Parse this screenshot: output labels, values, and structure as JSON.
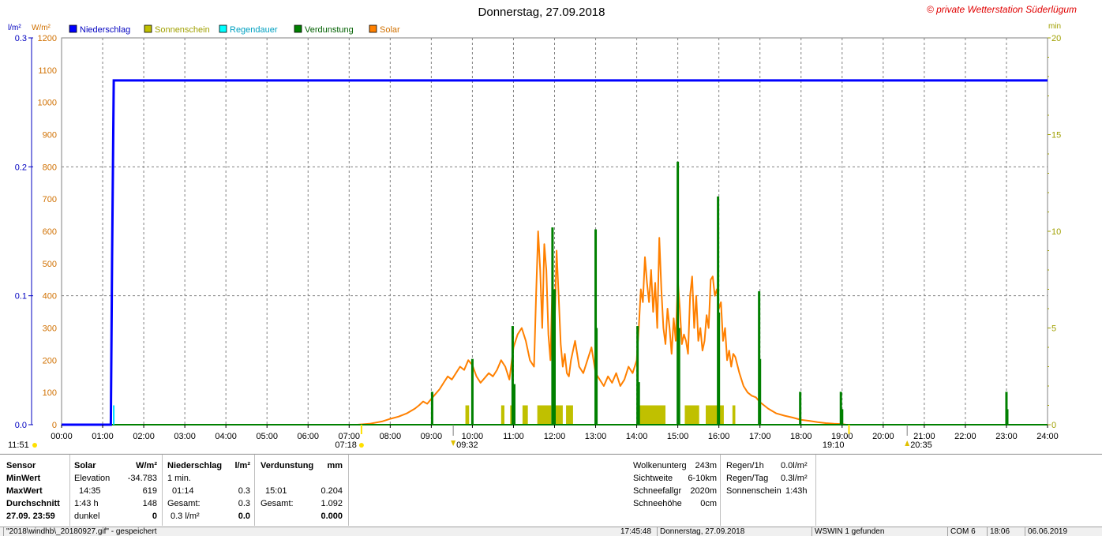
{
  "chart_data": {
    "type": "line",
    "title": "Donnerstag, 27.09.2018",
    "watermark": "© private Wetterstation Süderlügum",
    "left_units": [
      "l/m²",
      "W/m²"
    ],
    "right_unit": "min",
    "legend": [
      {
        "name": "Niederschlag",
        "color": "#0000ff"
      },
      {
        "name": "Sonnenschein",
        "color": "#c0c000"
      },
      {
        "name": "Regendauer",
        "color": "#00ffff"
      },
      {
        "name": "Verdunstung",
        "color": "#008000"
      },
      {
        "name": "Solar",
        "color": "#ff8000"
      }
    ],
    "x_ticks": [
      "00:00",
      "01:00",
      "02:00",
      "03:00",
      "04:00",
      "05:00",
      "06:00",
      "07:00",
      "08:00",
      "09:00",
      "10:00",
      "11:00",
      "12:00",
      "13:00",
      "14:00",
      "15:00",
      "16:00",
      "17:00",
      "18:00",
      "19:00",
      "20:00",
      "21:00",
      "22:00",
      "23:00",
      "24:00"
    ],
    "x_range_hours": [
      0,
      24
    ],
    "y_rain_ticks": [
      "0.0",
      "0.1",
      "0.2",
      "0.3"
    ],
    "y_rain_range": [
      0,
      0.3
    ],
    "y_solar_ticks": [
      "0",
      "100",
      "200",
      "300",
      "400",
      "500",
      "600",
      "700",
      "800",
      "900",
      "1000",
      "1100",
      "1200"
    ],
    "y_solar_range": [
      0,
      1200
    ],
    "y_right_ticks": [
      "0",
      "5",
      "10",
      "15",
      "20"
    ],
    "y_right_range": [
      0,
      20
    ],
    "sun_events": {
      "solar_noon": "11:51",
      "sunrise": "07:18",
      "sunset": "19:10",
      "moonrise": "09:32",
      "moonset": "20:35"
    },
    "grid": true,
    "niederschlag": {
      "x": [
        0,
        1.2,
        1.23,
        1.27,
        24
      ],
      "y": [
        0,
        0,
        0.13,
        0.267,
        0.267
      ]
    },
    "regendauer": {
      "x": [
        1.27
      ],
      "y": [
        1
      ]
    },
    "sonnenschein_bars": [
      {
        "x1": 9.83,
        "x2": 9.92,
        "v": 1
      },
      {
        "x1": 10.7,
        "x2": 10.78,
        "v": 1
      },
      {
        "x1": 10.92,
        "x2": 11.02,
        "v": 1
      },
      {
        "x1": 11.22,
        "x2": 11.35,
        "v": 1
      },
      {
        "x1": 11.58,
        "x2": 11.92,
        "v": 1
      },
      {
        "x1": 12.02,
        "x2": 12.2,
        "v": 1
      },
      {
        "x1": 12.28,
        "x2": 12.45,
        "v": 1
      },
      {
        "x1": 14.05,
        "x2": 14.7,
        "v": 1
      },
      {
        "x1": 15.17,
        "x2": 15.52,
        "v": 1
      },
      {
        "x1": 15.68,
        "x2": 16.12,
        "v": 1
      },
      {
        "x1": 16.33,
        "x2": 16.4,
        "v": 1
      }
    ],
    "verdunstung_bars": [
      {
        "x": 9.02,
        "v": 1.7
      },
      {
        "x": 10.0,
        "v": 3.4
      },
      {
        "x": 10.98,
        "v": 5.1
      },
      {
        "x": 11.02,
        "v": 2.1
      },
      {
        "x": 11.95,
        "v": 10.2
      },
      {
        "x": 12.0,
        "v": 7.0
      },
      {
        "x": 13.0,
        "v": 10.1
      },
      {
        "x": 13.02,
        "v": 5.0
      },
      {
        "x": 14.02,
        "v": 5.1
      },
      {
        "x": 14.05,
        "v": 2.2
      },
      {
        "x": 15.0,
        "v": 13.6
      },
      {
        "x": 15.03,
        "v": 5.0
      },
      {
        "x": 15.98,
        "v": 11.8
      },
      {
        "x": 16.0,
        "v": 5.8
      },
      {
        "x": 16.98,
        "v": 6.9
      },
      {
        "x": 17.0,
        "v": 3.4
      },
      {
        "x": 17.98,
        "v": 1.7
      },
      {
        "x": 18.97,
        "v": 1.7
      },
      {
        "x": 19.0,
        "v": 0.8
      },
      {
        "x": 23.0,
        "v": 1.7
      },
      {
        "x": 23.02,
        "v": 0.8
      }
    ],
    "solar": {
      "x": [
        0,
        7.2,
        7.5,
        7.8,
        8.0,
        8.2,
        8.4,
        8.6,
        8.7,
        8.8,
        8.9,
        9.0,
        9.1,
        9.2,
        9.3,
        9.4,
        9.5,
        9.6,
        9.7,
        9.8,
        9.9,
        10.0,
        10.1,
        10.2,
        10.3,
        10.4,
        10.5,
        10.6,
        10.7,
        10.8,
        10.9,
        11.0,
        11.1,
        11.2,
        11.3,
        11.4,
        11.5,
        11.55,
        11.6,
        11.65,
        11.7,
        11.75,
        11.8,
        11.85,
        11.9,
        11.95,
        12.0,
        12.05,
        12.1,
        12.15,
        12.2,
        12.25,
        12.3,
        12.35,
        12.4,
        12.5,
        12.6,
        12.7,
        12.8,
        12.9,
        13.0,
        13.1,
        13.2,
        13.3,
        13.4,
        13.5,
        13.6,
        13.7,
        13.8,
        13.9,
        14.0,
        14.05,
        14.1,
        14.15,
        14.2,
        14.25,
        14.3,
        14.35,
        14.4,
        14.45,
        14.5,
        14.55,
        14.6,
        14.65,
        14.7,
        14.75,
        14.8,
        14.85,
        14.9,
        14.95,
        15.0,
        15.05,
        15.1,
        15.15,
        15.2,
        15.25,
        15.3,
        15.35,
        15.4,
        15.45,
        15.5,
        15.55,
        15.6,
        15.65,
        15.7,
        15.75,
        15.8,
        15.85,
        15.9,
        15.95,
        16.0,
        16.05,
        16.1,
        16.15,
        16.2,
        16.25,
        16.3,
        16.35,
        16.4,
        16.5,
        16.6,
        16.7,
        16.8,
        16.9,
        17.0,
        17.2,
        17.4,
        17.6,
        17.8,
        18.0,
        18.2,
        18.4,
        18.6,
        18.8,
        19.0,
        19.1,
        24
      ],
      "y": [
        0,
        0,
        3,
        10,
        18,
        25,
        35,
        50,
        60,
        72,
        65,
        80,
        95,
        110,
        130,
        150,
        140,
        160,
        180,
        170,
        200,
        185,
        150,
        130,
        145,
        160,
        150,
        170,
        200,
        180,
        140,
        240,
        280,
        300,
        260,
        200,
        180,
        400,
        600,
        480,
        300,
        560,
        480,
        280,
        200,
        450,
        300,
        540,
        400,
        250,
        180,
        220,
        160,
        150,
        200,
        260,
        180,
        160,
        200,
        240,
        160,
        140,
        120,
        150,
        130,
        160,
        120,
        140,
        180,
        160,
        200,
        300,
        420,
        380,
        520,
        440,
        380,
        480,
        350,
        440,
        300,
        580,
        420,
        300,
        250,
        360,
        300,
        220,
        330,
        260,
        450,
        360,
        250,
        280,
        260,
        220,
        400,
        460,
        300,
        400,
        260,
        300,
        230,
        260,
        340,
        300,
        450,
        460,
        400,
        420,
        360,
        380,
        260,
        300,
        200,
        230,
        180,
        220,
        210,
        160,
        120,
        100,
        90,
        85,
        70,
        50,
        35,
        28,
        22,
        15,
        12,
        8,
        5,
        3,
        2,
        0,
        0
      ]
    }
  },
  "info": {
    "sensor": {
      "title": "Sensor",
      "rows": [
        "MinWert",
        "MaxWert",
        "Durchschnitt",
        "27.09.  23:59"
      ]
    },
    "solar": {
      "title": "Solar",
      "unit": "W/m²",
      "rows": [
        [
          "Elevation",
          "-34.783"
        ],
        [
          "14:35",
          "619"
        ],
        [
          "1:43 h",
          "148"
        ],
        [
          "dunkel",
          "0"
        ]
      ]
    },
    "niederschlag": {
      "title": "Niederschlag",
      "unit": "l/m²",
      "rows": [
        [
          "1 min.",
          ""
        ],
        [
          "01:14",
          "0.3"
        ],
        [
          "Gesamt:",
          "0.3"
        ],
        [
          "0.3 l/m²",
          "0.0"
        ]
      ]
    },
    "verdunstung": {
      "title": "Verdunstung",
      "unit": "mm",
      "rows": [
        [
          "",
          ""
        ],
        [
          "15:01",
          "0.204"
        ],
        [
          "Gesamt:",
          "1.092"
        ],
        [
          "",
          "0.000"
        ]
      ]
    },
    "wolken": {
      "rows": [
        [
          "Wolkenunterg",
          "243m"
        ],
        [
          "Sichtweite",
          "6-10km"
        ],
        [
          "Schneefallgr",
          "2020m"
        ],
        [
          "Schneehöhe",
          "0cm"
        ]
      ]
    },
    "regen": {
      "rows": [
        [
          "Regen/1h",
          "0.0l/m²"
        ],
        [
          "Regen/Tag",
          "0.3l/m²"
        ],
        [
          "Sonnenschein",
          "1:43h"
        ]
      ]
    }
  },
  "status": [
    "\"2018\\windhb\\_20180927.gif\" - gespeichert",
    "17:45:48",
    "Donnerstag, 27.09.2018",
    "WSWIN 1 gefunden",
    "COM 6",
    "18:06",
    "06.06.2019"
  ]
}
